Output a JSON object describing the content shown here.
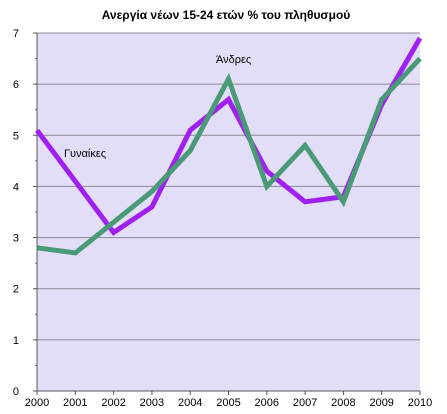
{
  "chart_data": {
    "type": "line",
    "title": "Ανεργία νέων 15-24 ετών  % του πληθυσμού",
    "xlabel": "",
    "ylabel": "",
    "x": [
      "2000",
      "2001",
      "2002",
      "2003",
      "2004",
      "2005",
      "2006",
      "2007",
      "2008",
      "2009",
      "2010"
    ],
    "ylim": [
      0,
      7
    ],
    "yticks": [
      "0",
      "1",
      "2",
      "3",
      "4",
      "5",
      "6",
      "7"
    ],
    "grid": true,
    "legend": "none",
    "plot_background": "#e3def8",
    "series": [
      {
        "name": "Γυναίκες",
        "color": "#a020f0",
        "values": [
          5.1,
          4.1,
          3.1,
          3.6,
          5.1,
          5.7,
          4.3,
          3.7,
          3.8,
          5.6,
          6.9
        ]
      },
      {
        "name": "Άνδρες",
        "color": "#4a9a78",
        "values": [
          2.8,
          2.7,
          3.3,
          3.9,
          4.7,
          6.1,
          4.0,
          4.8,
          3.7,
          5.7,
          6.5
        ]
      }
    ]
  }
}
